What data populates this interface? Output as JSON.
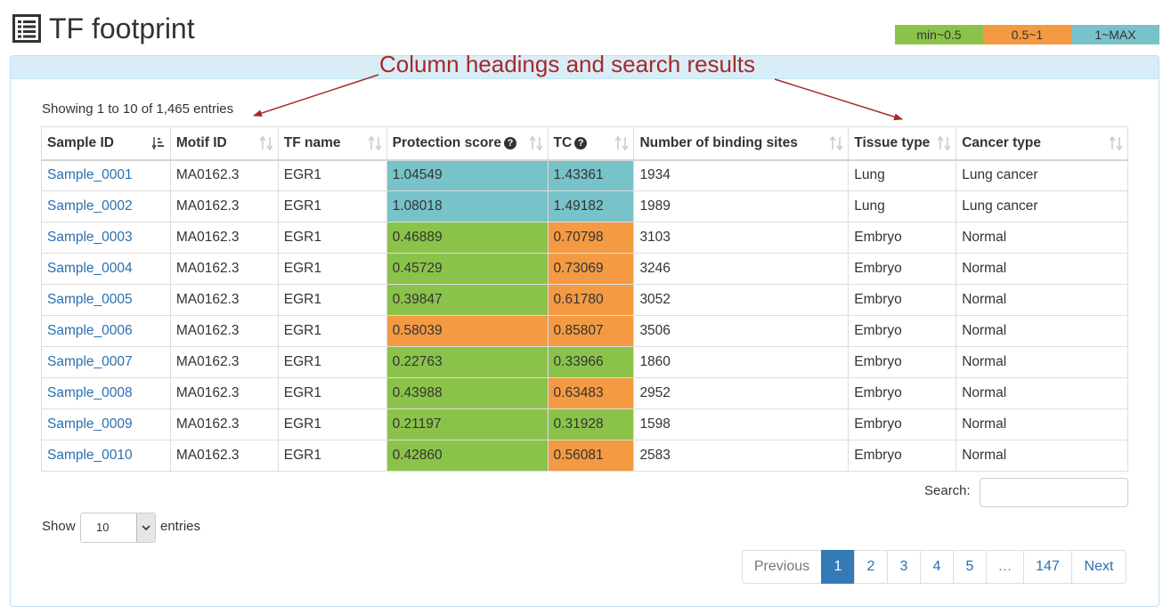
{
  "title": "TF footprint",
  "legend": [
    {
      "label": "min~0.5",
      "color": "#8bc34a"
    },
    {
      "label": "0.5~1",
      "color": "#f39a43"
    },
    {
      "label": "1~MAX",
      "color": "#78c2c9"
    }
  ],
  "annotation": "Column headings and search results",
  "info": "Showing 1 to 10 of 1,465 entries",
  "columns": [
    "Sample ID",
    "Motif ID",
    "TF name",
    "Protection score",
    "TC",
    "Number of binding sites",
    "Tissue type",
    "Cancer type"
  ],
  "rows": [
    {
      "sample": "Sample_0001",
      "motif": "MA0162.3",
      "tf": "EGR1",
      "score": "1.04549",
      "tc": "1.43361",
      "sites": "1934",
      "tissue": "Lung",
      "cancer": "Lung cancer"
    },
    {
      "sample": "Sample_0002",
      "motif": "MA0162.3",
      "tf": "EGR1",
      "score": "1.08018",
      "tc": "1.49182",
      "sites": "1989",
      "tissue": "Lung",
      "cancer": "Lung cancer"
    },
    {
      "sample": "Sample_0003",
      "motif": "MA0162.3",
      "tf": "EGR1",
      "score": "0.46889",
      "tc": "0.70798",
      "sites": "3103",
      "tissue": "Embryo",
      "cancer": "Normal"
    },
    {
      "sample": "Sample_0004",
      "motif": "MA0162.3",
      "tf": "EGR1",
      "score": "0.45729",
      "tc": "0.73069",
      "sites": "3246",
      "tissue": "Embryo",
      "cancer": "Normal"
    },
    {
      "sample": "Sample_0005",
      "motif": "MA0162.3",
      "tf": "EGR1",
      "score": "0.39847",
      "tc": "0.61780",
      "sites": "3052",
      "tissue": "Embryo",
      "cancer": "Normal"
    },
    {
      "sample": "Sample_0006",
      "motif": "MA0162.3",
      "tf": "EGR1",
      "score": "0.58039",
      "tc": "0.85807",
      "sites": "3506",
      "tissue": "Embryo",
      "cancer": "Normal"
    },
    {
      "sample": "Sample_0007",
      "motif": "MA0162.3",
      "tf": "EGR1",
      "score": "0.22763",
      "tc": "0.33966",
      "sites": "1860",
      "tissue": "Embryo",
      "cancer": "Normal"
    },
    {
      "sample": "Sample_0008",
      "motif": "MA0162.3",
      "tf": "EGR1",
      "score": "0.43988",
      "tc": "0.63483",
      "sites": "2952",
      "tissue": "Embryo",
      "cancer": "Normal"
    },
    {
      "sample": "Sample_0009",
      "motif": "MA0162.3",
      "tf": "EGR1",
      "score": "0.21197",
      "tc": "0.31928",
      "sites": "1598",
      "tissue": "Embryo",
      "cancer": "Normal"
    },
    {
      "sample": "Sample_0010",
      "motif": "MA0162.3",
      "tf": "EGR1",
      "score": "0.42860",
      "tc": "0.56081",
      "sites": "2583",
      "tissue": "Embryo",
      "cancer": "Normal"
    }
  ],
  "search_label": "Search:",
  "search_value": "",
  "show_label": "Show",
  "length_value": "10",
  "entries_label": "entries",
  "pagination": [
    "Previous",
    "1",
    "2",
    "3",
    "4",
    "5",
    "…",
    "147",
    "Next"
  ],
  "colors": {
    "link": "#2a6fb0",
    "annotation": "#a52a2a",
    "active_page": "#337ab7",
    "panel_heading": "#d9edf7"
  }
}
